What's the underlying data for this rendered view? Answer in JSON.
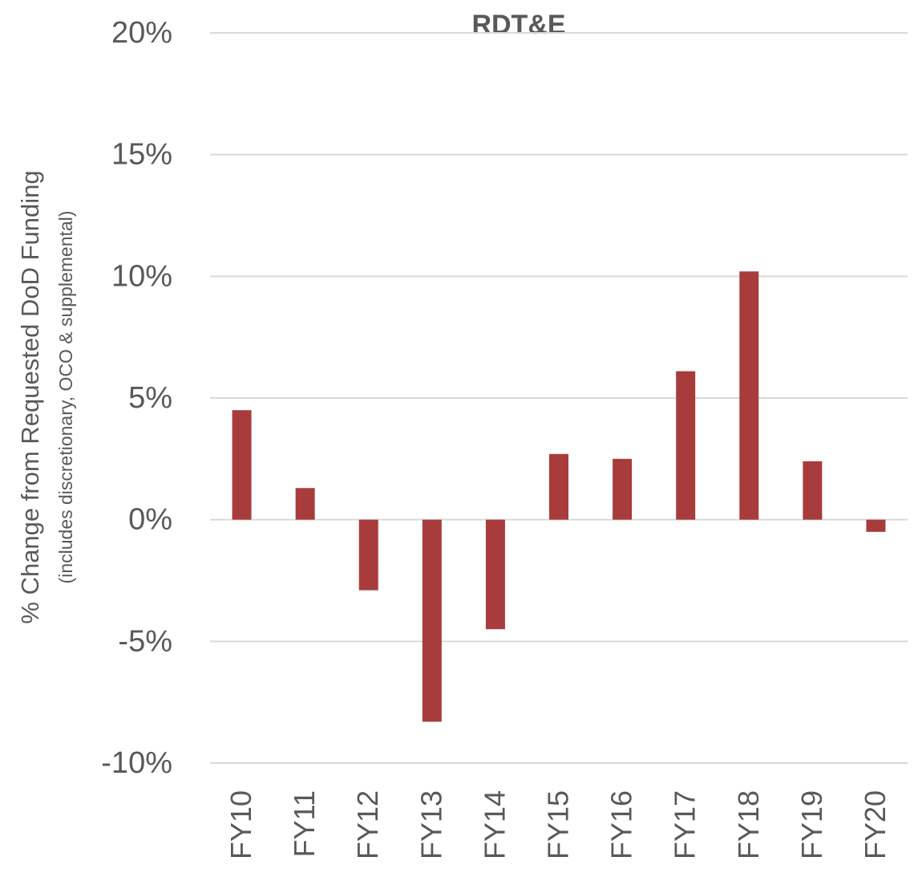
{
  "chart_data": {
    "type": "bar",
    "title": "RDT&E",
    "y_label": "% Change from Requested DoD Funding",
    "y_sublabel": "(includes discretionary, OCO & supplemental)",
    "categories": [
      "FY10",
      "FY11",
      "FY12",
      "FY13",
      "FY14",
      "FY15",
      "FY16",
      "FY17",
      "FY18",
      "FY19",
      "FY20"
    ],
    "values": [
      4.5,
      1.3,
      -2.9,
      -8.3,
      -4.5,
      2.7,
      2.5,
      6.1,
      10.2,
      2.4,
      -0.5
    ],
    "color": "#a83c3c",
    "ylim": [
      -10,
      20
    ],
    "yticks": [
      {
        "value": -10,
        "label": "-10%"
      },
      {
        "value": -5,
        "label": "-5%"
      },
      {
        "value": 0,
        "label": "0%"
      },
      {
        "value": 5,
        "label": "5%"
      },
      {
        "value": 10,
        "label": "10%"
      },
      {
        "value": 15,
        "label": "15%"
      },
      {
        "value": 20,
        "label": "20%"
      }
    ],
    "grid": true
  }
}
